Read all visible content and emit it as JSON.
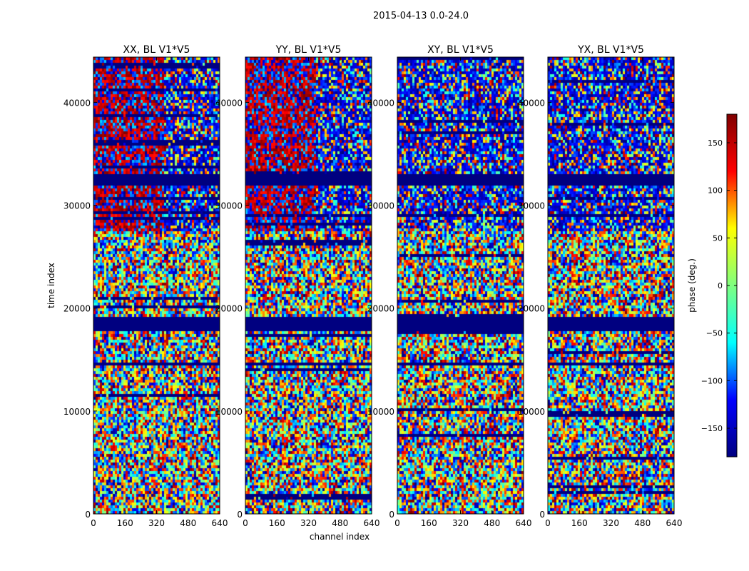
{
  "chart_data": {
    "type": "heatmap",
    "suptitle": "2015-04-13 0.0-24.0",
    "xlabel": "channel index",
    "ylabel": "time index",
    "xlim": [
      0,
      640
    ],
    "ylim": [
      0,
      44400
    ],
    "x_ticks": [
      0,
      160,
      320,
      480,
      640
    ],
    "y_ticks": [
      0,
      10000,
      20000,
      30000,
      40000
    ],
    "y_tick_labels": [
      "0",
      "10000",
      "20000",
      "30000",
      "40000"
    ],
    "panels": [
      {
        "title": "XX, BL V1*V5",
        "polarization": "XX"
      },
      {
        "title": "YY, BL V1*V5",
        "polarization": "YY"
      },
      {
        "title": "XY, BL V1*V5",
        "polarization": "XY"
      },
      {
        "title": "YX, BL V1*V5",
        "polarization": "YX"
      }
    ],
    "colorbar": {
      "label": "phase (deg.)",
      "range": [
        -180,
        180
      ],
      "ticks": [
        150,
        100,
        50,
        0,
        -50,
        -100,
        -150
      ],
      "tick_labels": [
        "150",
        "100",
        "50",
        "0",
        "−50",
        "−100",
        "−150"
      ],
      "colormap": "jet"
    },
    "flagged_time_ranges": [
      [
        31800,
        33000
      ],
      [
        17800,
        19200
      ],
      [
        14400,
        14800
      ]
    ],
    "colormap_stops": [
      "#000080",
      "#0000ff",
      "#00ffff",
      "#7fff7f",
      "#ffff00",
      "#ff0000",
      "#800000"
    ]
  }
}
